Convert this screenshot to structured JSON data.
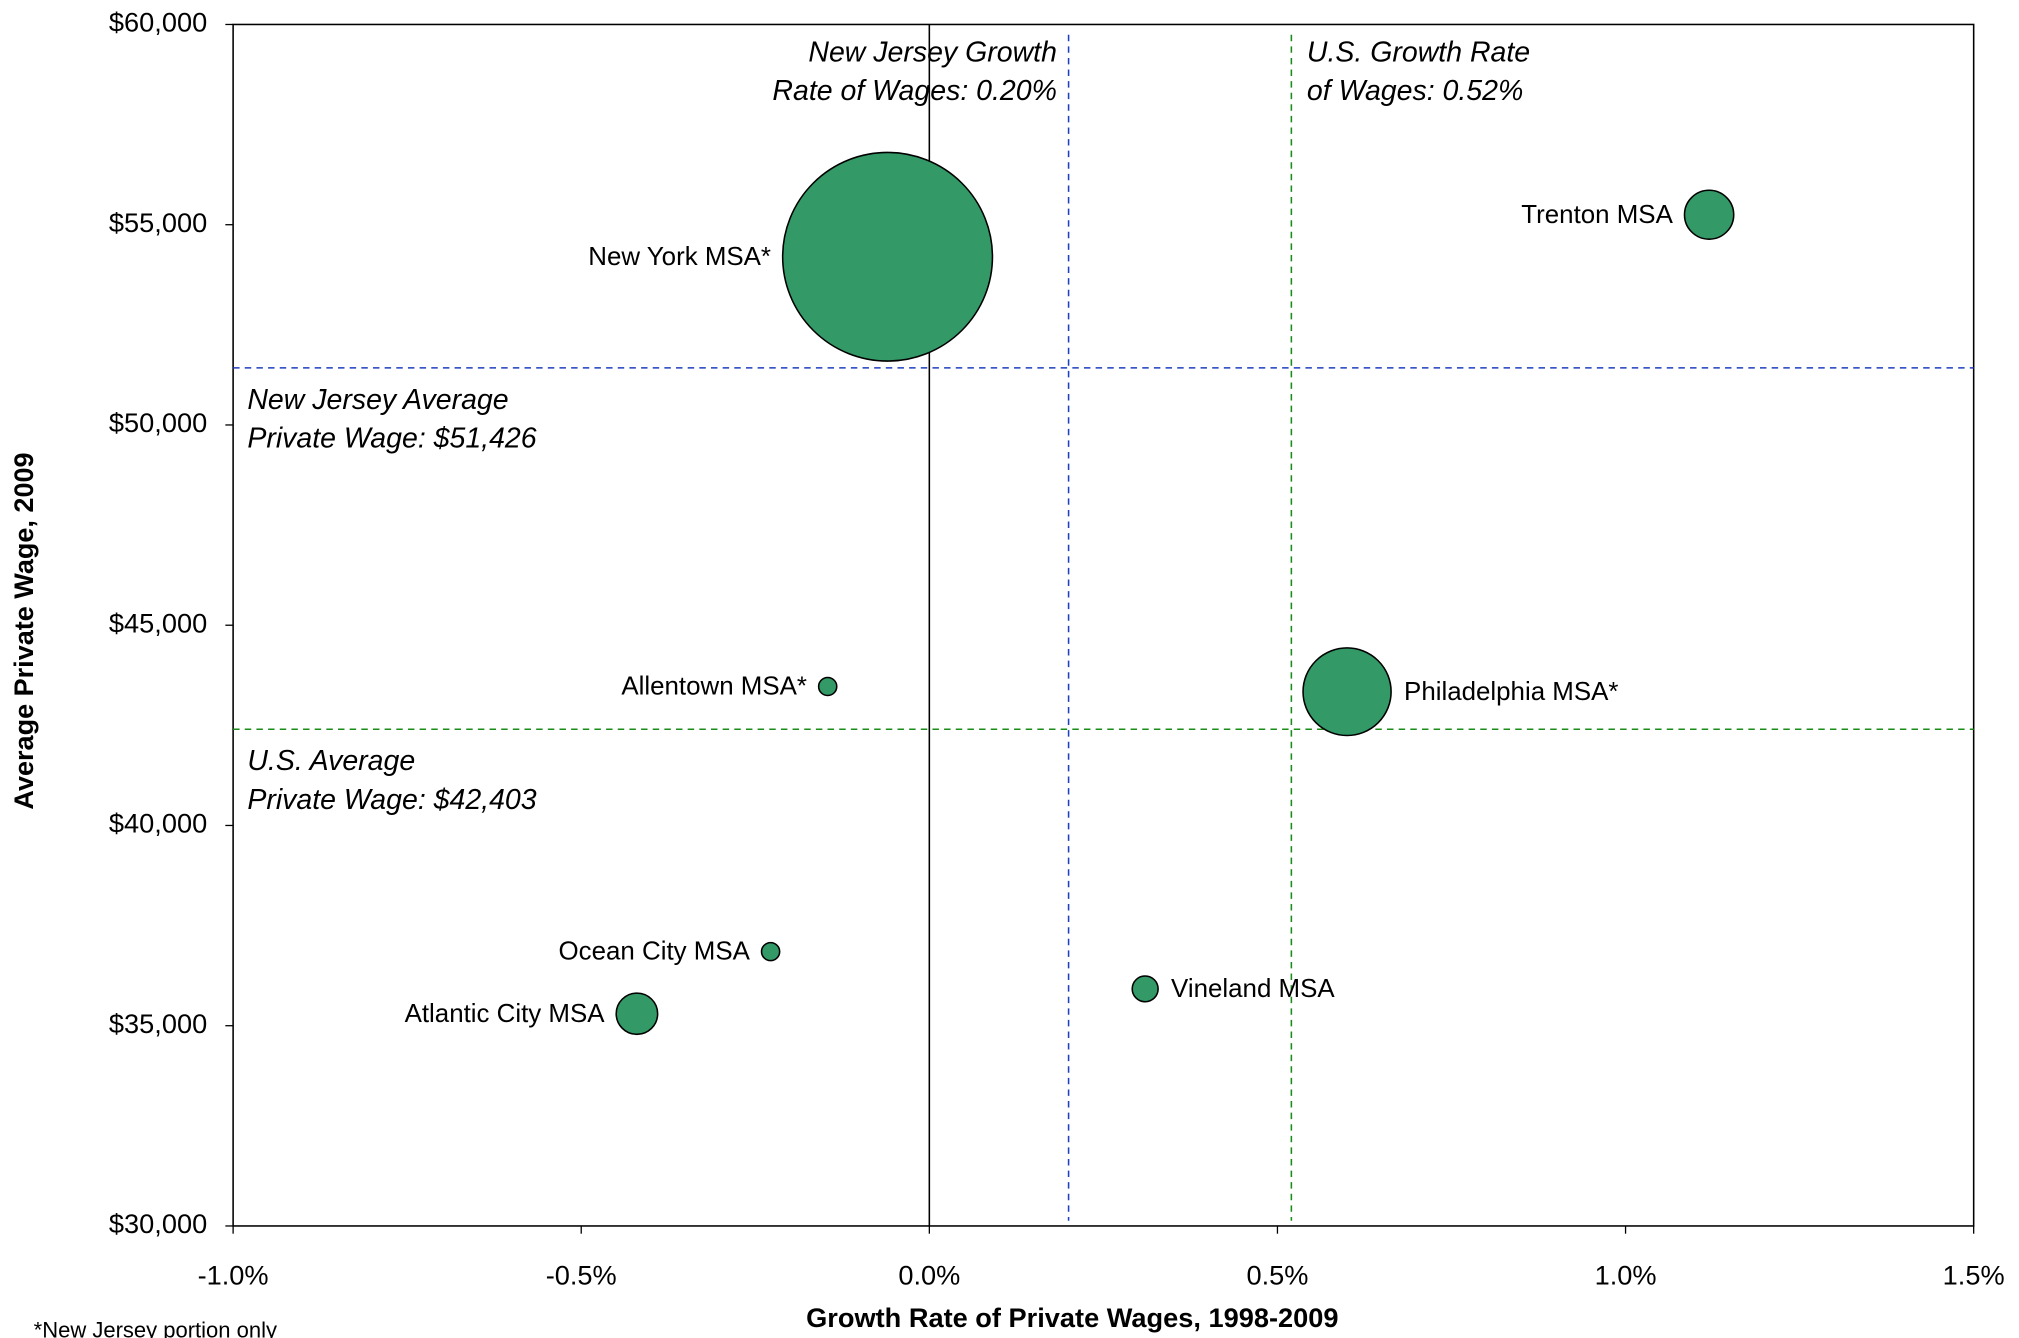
{
  "chart_data": {
    "type": "bubble",
    "x_label": "Growth Rate of Private Wages, 1998-2009",
    "y_label": "Average Private Wage, 2009",
    "footnote": "*New Jersey portion only",
    "point_labels": [
      "New York MSA*",
      "Trenton MSA",
      "Allentown MSA*",
      "Philadelphia MSA*",
      "Ocean City MSA",
      "Atlantic City MSA",
      "Vineland MSA"
    ],
    "x": [
      -0.06,
      1.12,
      -0.146,
      0.6,
      -0.228,
      -0.42,
      0.31
    ],
    "values": [
      54200,
      55250,
      43470,
      43340,
      36850,
      35300,
      35920
    ],
    "sizes": [
      6561,
      361,
      49,
      1156,
      49,
      256,
      100
    ],
    "color": "#339966",
    "xlim": [
      -1.0,
      1.5
    ],
    "ylim": [
      30000,
      60000
    ],
    "xticks": [
      {
        "value": -1.0,
        "label": "-1.0%"
      },
      {
        "value": -0.5,
        "label": "-0.5%"
      },
      {
        "value": 0.0,
        "label": "0.0%"
      },
      {
        "value": 0.5,
        "label": "0.5%"
      },
      {
        "value": 1.0,
        "label": "1.0%"
      },
      {
        "value": 1.5,
        "label": "1.5%"
      }
    ],
    "yticks": [
      {
        "value": 30000,
        "label": "$30,000"
      },
      {
        "value": 35000,
        "label": "$35,000"
      },
      {
        "value": 40000,
        "label": "$40,000"
      },
      {
        "value": 45000,
        "label": "$45,000"
      },
      {
        "value": 50000,
        "label": "$50,000"
      },
      {
        "value": 55000,
        "label": "$55,000"
      },
      {
        "value": 60000,
        "label": "$60,000"
      }
    ],
    "reference_lines": [
      {
        "axis": "x",
        "value": 0.2,
        "color": "#1f3fbf",
        "label_lines": [
          "New Jersey Growth",
          "Rate of Wages: 0.20%"
        ]
      },
      {
        "axis": "x",
        "value": 0.52,
        "color": "#1a8c1a",
        "label_lines": [
          "U.S. Growth Rate",
          "of  Wages: 0.52%"
        ]
      },
      {
        "axis": "y",
        "value": 51426,
        "color": "#1f3fbf",
        "label_lines": [
          "New Jersey Average",
          "Private Wage: $51,426"
        ]
      },
      {
        "axis": "y",
        "value": 42403,
        "color": "#1a8c1a",
        "label_lines": [
          "U.S. Average",
          "Private Wage: $42,403"
        ]
      }
    ]
  }
}
